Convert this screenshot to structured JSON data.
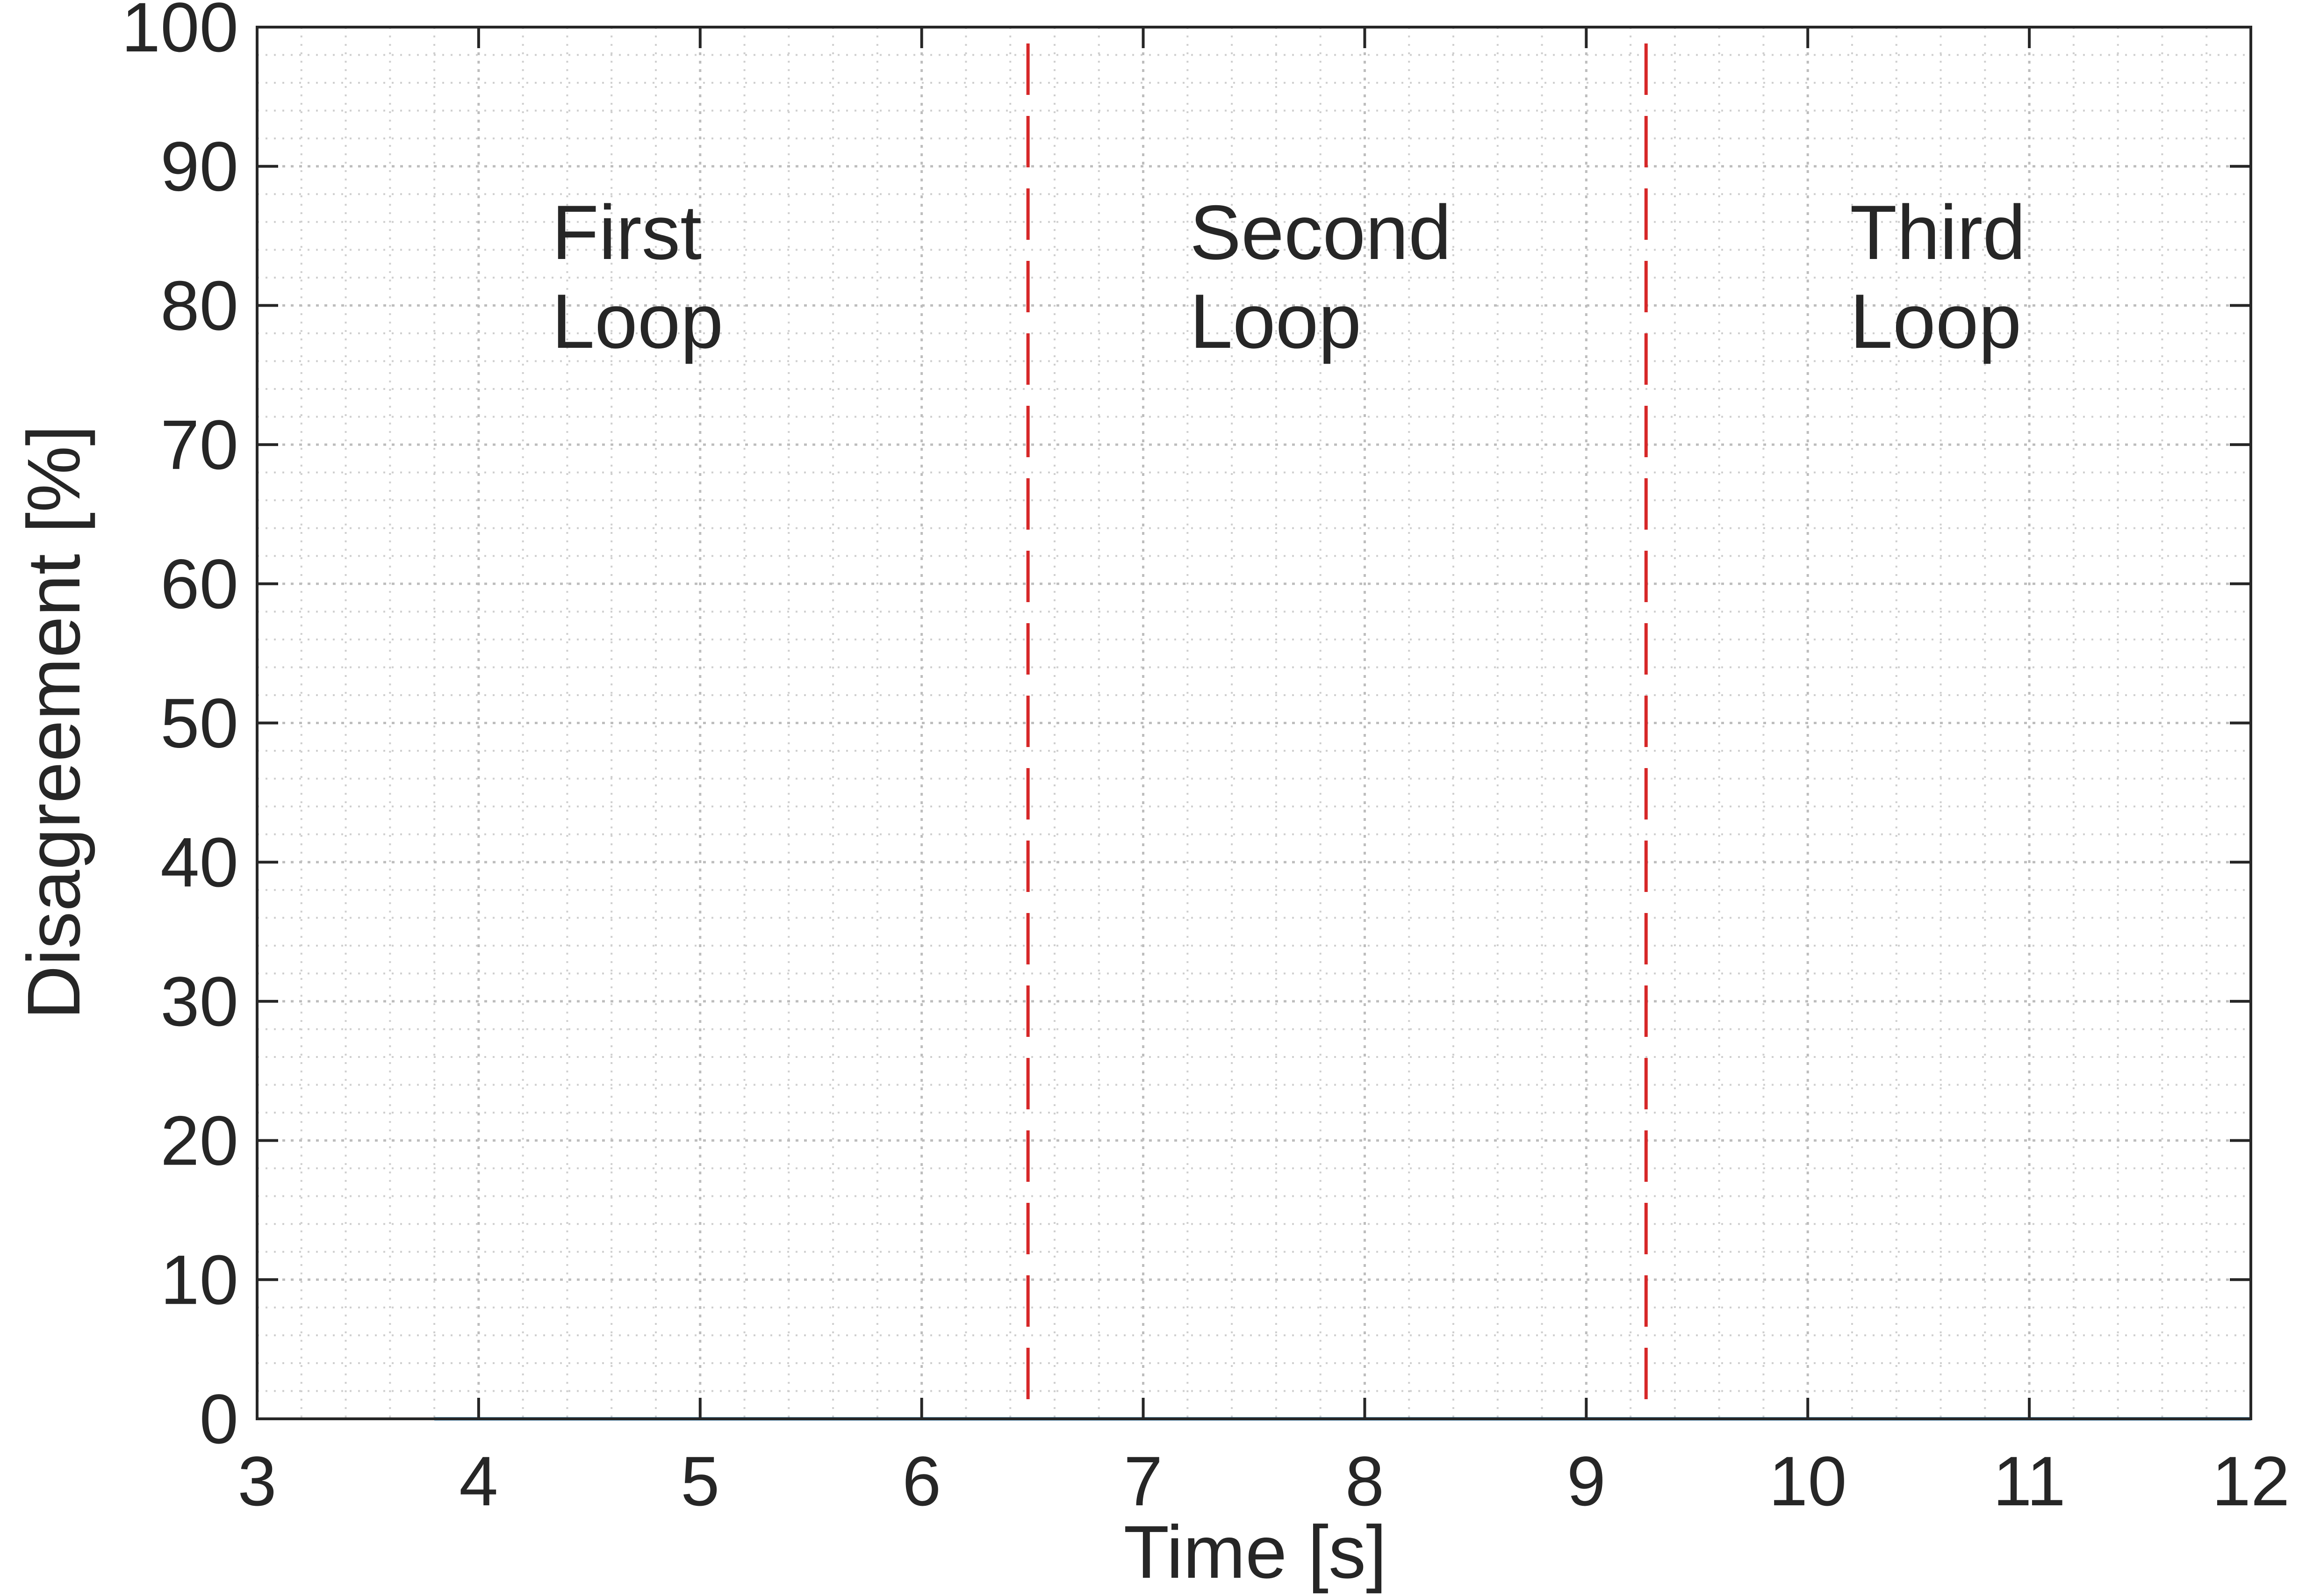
{
  "chart_data": {
    "type": "line",
    "title": "",
    "xlabel": "Time [s]",
    "ylabel": "Disagreement [%]",
    "xlim": [
      3,
      12
    ],
    "ylim": [
      0,
      100
    ],
    "xticks": [
      "3",
      "4",
      "5",
      "6",
      "7",
      "8",
      "9",
      "10",
      "11",
      "12"
    ],
    "yticks": [
      "0",
      "10",
      "20",
      "30",
      "40",
      "50",
      "60",
      "70",
      "80",
      "90",
      "100"
    ],
    "grid": "on",
    "minor_grid": "on",
    "series": [
      {
        "x": [
          3.8,
          12.0
        ],
        "y": [
          0,
          0
        ],
        "color": "#0072BD"
      }
    ],
    "vlines": [
      {
        "x": 6.48,
        "color": "#D62728",
        "style": "dashed"
      },
      {
        "x": 9.27,
        "color": "#D62728",
        "style": "dashed"
      }
    ],
    "annotations": [
      {
        "lines": [
          "First",
          "Loop"
        ],
        "x": 4.33,
        "y": 82.5
      },
      {
        "lines": [
          "Second",
          "Loop"
        ],
        "x": 7.21,
        "y": 82.5
      },
      {
        "lines": [
          "Third",
          "Loop"
        ],
        "x": 10.19,
        "y": 82.5
      }
    ]
  }
}
